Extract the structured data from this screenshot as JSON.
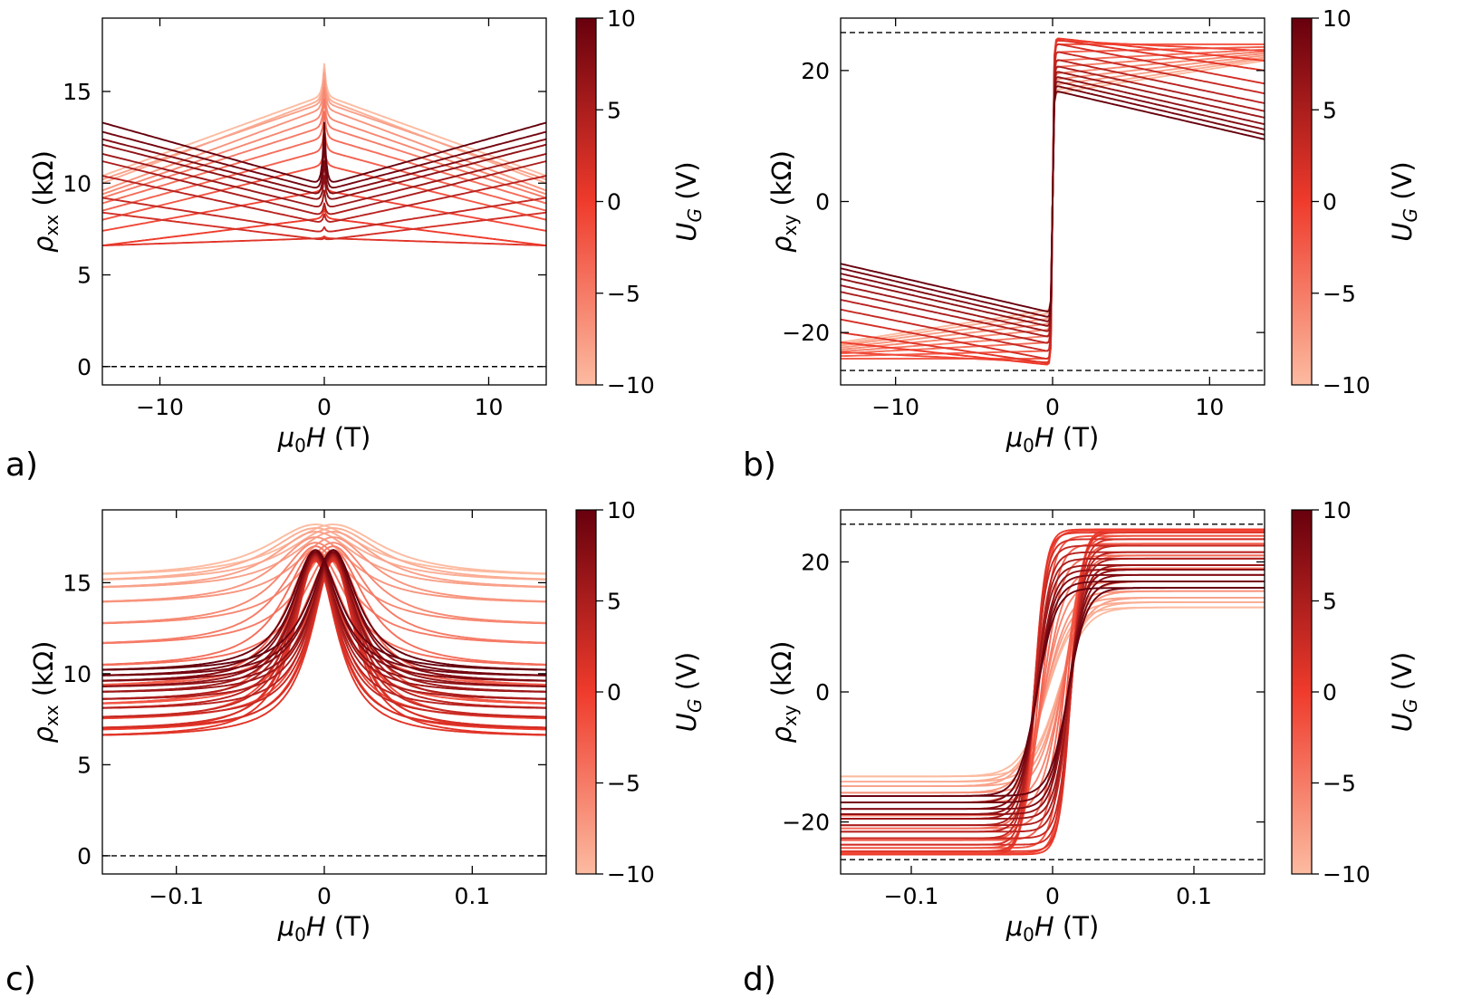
{
  "colors": {
    "cmap_low": "#fcbba1",
    "cmap_mid": "#ef3b2c",
    "cmap_high": "#67000d"
  },
  "colorbar": {
    "label_main": "U",
    "label_sub": "G",
    "label_unit": " (V)",
    "vmin": -10,
    "vmax": 10,
    "ticks": [
      10,
      5,
      0,
      -5,
      -10
    ]
  },
  "panel_letters": {
    "a": "a)",
    "b": "b)",
    "c": "c)",
    "d": "d)"
  },
  "chart_data": [
    {
      "id": "a",
      "type": "line",
      "title": "",
      "xlabel_main": "μ",
      "xlabel_sub": "0",
      "xlabel_var": "H",
      "xlabel_unit": " (T)",
      "ylabel_main": "ρ",
      "ylabel_sub": "xx",
      "ylabel_unit": " (kΩ)",
      "xlim": [
        -13.5,
        13.5
      ],
      "ylim": [
        -1,
        19
      ],
      "xticks": [
        -10,
        0,
        10
      ],
      "yticks": [
        0,
        5,
        10,
        15
      ],
      "reference_lines": [
        0
      ],
      "colorbar": "U_G (V)",
      "model": "sweep",
      "series": [
        {
          "gate_V": -10,
          "values": {
            "h0": 14.8,
            "h_pk": 16.5,
            "h_edge": 10.4
          }
        },
        {
          "gate_V": -9,
          "values": {
            "h0": 14.6,
            "h_pk": 16.2,
            "h_edge": 10.0
          }
        },
        {
          "gate_V": -8,
          "values": {
            "h0": 14.4,
            "h_pk": 16.0,
            "h_edge": 10.2
          }
        },
        {
          "gate_V": -7,
          "values": {
            "h0": 14.1,
            "h_pk": 15.6,
            "h_edge": 9.6
          }
        },
        {
          "gate_V": -6,
          "values": {
            "h0": 13.6,
            "h_pk": 15.2,
            "h_edge": 9.4
          }
        },
        {
          "gate_V": -5,
          "values": {
            "h0": 13.1,
            "h_pk": 14.6,
            "h_edge": 9.2
          }
        },
        {
          "gate_V": -4,
          "values": {
            "h0": 12.5,
            "h_pk": 13.9,
            "h_edge": 8.9
          }
        },
        {
          "gate_V": -3,
          "values": {
            "h0": 11.8,
            "h_pk": 13.0,
            "h_edge": 8.5
          }
        },
        {
          "gate_V": -2,
          "values": {
            "h0": 11.0,
            "h_pk": 12.0,
            "h_edge": 8.0
          }
        },
        {
          "gate_V": -1,
          "values": {
            "h0": 9.6,
            "h_pk": 10.2,
            "h_edge": 7.4
          }
        },
        {
          "gate_V": 0,
          "values": {
            "h0": 8.1,
            "h_pk": 8.6,
            "h_edge": 6.6
          }
        },
        {
          "gate_V": 1,
          "values": {
            "h0": 7.0,
            "h_pk": 7.1,
            "h_edge": 6.6
          }
        },
        {
          "gate_V": 2,
          "values": {
            "h0": 6.9,
            "h_pk": 7.0,
            "h_edge": 8.4
          }
        },
        {
          "gate_V": 3,
          "values": {
            "h0": 7.3,
            "h_pk": 7.6,
            "h_edge": 9.2
          }
        },
        {
          "gate_V": 4,
          "values": {
            "h0": 7.8,
            "h_pk": 8.3,
            "h_edge": 10.4
          }
        },
        {
          "gate_V": 5,
          "values": {
            "h0": 8.2,
            "h_pk": 8.9,
            "h_edge": 11.2
          }
        },
        {
          "gate_V": 6,
          "values": {
            "h0": 8.6,
            "h_pk": 9.6,
            "h_edge": 11.6
          }
        },
        {
          "gate_V": 7,
          "values": {
            "h0": 9.0,
            "h_pk": 10.4,
            "h_edge": 12.1
          }
        },
        {
          "gate_V": 8,
          "values": {
            "h0": 9.3,
            "h_pk": 11.2,
            "h_edge": 12.4
          }
        },
        {
          "gate_V": 9,
          "values": {
            "h0": 9.6,
            "h_pk": 12.2,
            "h_edge": 12.8
          }
        },
        {
          "gate_V": 10,
          "values": {
            "h0": 9.9,
            "h_pk": 13.3,
            "h_edge": 13.3
          }
        }
      ]
    },
    {
      "id": "b",
      "type": "line",
      "title": "",
      "xlabel_main": "μ",
      "xlabel_sub": "0",
      "xlabel_var": "H",
      "xlabel_unit": " (T)",
      "ylabel_main": "ρ",
      "ylabel_sub": "xy",
      "ylabel_unit": " (kΩ)",
      "xlim": [
        -13.5,
        13.5
      ],
      "ylim": [
        -28,
        28
      ],
      "xticks": [
        -10,
        0,
        10
      ],
      "yticks": [
        -20,
        0,
        20
      ],
      "reference_lines": [
        25.8,
        -25.8
      ],
      "colorbar": "U_G (V)",
      "model": "hall",
      "series": [
        {
          "gate_V": -10,
          "values": {
            "y0": 16.5,
            "y_edge": 21.5
          }
        },
        {
          "gate_V": -9,
          "values": {
            "y0": 17.0,
            "y_edge": 21.8
          }
        },
        {
          "gate_V": -8,
          "values": {
            "y0": 17.8,
            "y_edge": 22.0
          }
        },
        {
          "gate_V": -7,
          "values": {
            "y0": 18.6,
            "y_edge": 22.3
          }
        },
        {
          "gate_V": -6,
          "values": {
            "y0": 19.5,
            "y_edge": 22.6
          }
        },
        {
          "gate_V": -5,
          "values": {
            "y0": 20.5,
            "y_edge": 22.9
          }
        },
        {
          "gate_V": -4,
          "values": {
            "y0": 21.5,
            "y_edge": 23.2
          }
        },
        {
          "gate_V": -3,
          "values": {
            "y0": 22.8,
            "y_edge": 23.6
          }
        },
        {
          "gate_V": -2,
          "values": {
            "y0": 24.0,
            "y_edge": 24.0
          }
        },
        {
          "gate_V": -1,
          "values": {
            "y0": 24.6,
            "y_edge": 23.0
          }
        },
        {
          "gate_V": 0,
          "values": {
            "y0": 25.0,
            "y_edge": 21.5
          }
        },
        {
          "gate_V": 1,
          "values": {
            "y0": 24.8,
            "y_edge": 20.0
          }
        },
        {
          "gate_V": 2,
          "values": {
            "y0": 24.2,
            "y_edge": 18.0
          }
        },
        {
          "gate_V": 3,
          "values": {
            "y0": 23.0,
            "y_edge": 16.5
          }
        },
        {
          "gate_V": 4,
          "values": {
            "y0": 21.8,
            "y_edge": 15.0
          }
        },
        {
          "gate_V": 5,
          "values": {
            "y0": 20.8,
            "y_edge": 13.8
          }
        },
        {
          "gate_V": 6,
          "values": {
            "y0": 20.0,
            "y_edge": 12.8
          }
        },
        {
          "gate_V": 7,
          "values": {
            "y0": 19.2,
            "y_edge": 11.8
          }
        },
        {
          "gate_V": 8,
          "values": {
            "y0": 18.5,
            "y_edge": 11.0
          }
        },
        {
          "gate_V": 9,
          "values": {
            "y0": 17.8,
            "y_edge": 10.2
          }
        },
        {
          "gate_V": 10,
          "values": {
            "y0": 17.0,
            "y_edge": 9.5
          }
        }
      ]
    },
    {
      "id": "c",
      "type": "line",
      "title": "",
      "xlabel_main": "μ",
      "xlabel_sub": "0",
      "xlabel_var": "H",
      "xlabel_unit": " (T)",
      "ylabel_main": "ρ",
      "ylabel_sub": "xx",
      "ylabel_unit": " (kΩ)",
      "xlim": [
        -0.15,
        0.15
      ],
      "ylim": [
        -1,
        19
      ],
      "xticks": [
        -0.1,
        0.0,
        0.1
      ],
      "yticks": [
        0,
        5,
        10,
        15
      ],
      "reference_lines": [
        0
      ],
      "colorbar": "U_G (V)",
      "model": "peak",
      "series": [
        {
          "gate_V": -10,
          "values": {
            "peak": 18.2,
            "base": 15.3,
            "width": 0.04
          }
        },
        {
          "gate_V": -9,
          "values": {
            "peak": 18.0,
            "base": 15.0,
            "width": 0.038
          }
        },
        {
          "gate_V": -8,
          "values": {
            "peak": 17.8,
            "base": 14.6,
            "width": 0.035
          }
        },
        {
          "gate_V": -7,
          "values": {
            "peak": 17.5,
            "base": 13.8,
            "width": 0.032
          }
        },
        {
          "gate_V": -6,
          "values": {
            "peak": 17.2,
            "base": 12.6,
            "width": 0.03
          }
        },
        {
          "gate_V": -5,
          "values": {
            "peak": 17.0,
            "base": 11.5,
            "width": 0.028
          }
        },
        {
          "gate_V": -4,
          "values": {
            "peak": 16.8,
            "base": 10.3,
            "width": 0.026
          }
        },
        {
          "gate_V": -3,
          "values": {
            "peak": 16.6,
            "base": 9.2,
            "width": 0.024
          }
        },
        {
          "gate_V": -2,
          "values": {
            "peak": 16.4,
            "base": 8.2,
            "width": 0.022
          }
        },
        {
          "gate_V": -1,
          "values": {
            "peak": 16.3,
            "base": 7.4,
            "width": 0.02
          }
        },
        {
          "gate_V": 0,
          "values": {
            "peak": 16.2,
            "base": 6.8,
            "width": 0.019
          }
        },
        {
          "gate_V": 1,
          "values": {
            "peak": 16.2,
            "base": 6.5,
            "width": 0.018
          }
        },
        {
          "gate_V": 2,
          "values": {
            "peak": 16.3,
            "base": 6.9,
            "width": 0.018
          }
        },
        {
          "gate_V": 3,
          "values": {
            "peak": 16.4,
            "base": 7.5,
            "width": 0.018
          }
        },
        {
          "gate_V": 4,
          "values": {
            "peak": 16.5,
            "base": 8.0,
            "width": 0.018
          }
        },
        {
          "gate_V": 5,
          "values": {
            "peak": 16.5,
            "base": 8.5,
            "width": 0.018
          }
        },
        {
          "gate_V": 6,
          "values": {
            "peak": 16.6,
            "base": 8.9,
            "width": 0.018
          }
        },
        {
          "gate_V": 7,
          "values": {
            "peak": 16.6,
            "base": 9.2,
            "width": 0.018
          }
        },
        {
          "gate_V": 8,
          "values": {
            "peak": 16.7,
            "base": 9.5,
            "width": 0.019
          }
        },
        {
          "gate_V": 9,
          "values": {
            "peak": 16.7,
            "base": 9.8,
            "width": 0.019
          }
        },
        {
          "gate_V": 10,
          "values": {
            "peak": 16.8,
            "base": 10.1,
            "width": 0.02
          }
        }
      ]
    },
    {
      "id": "d",
      "type": "line",
      "title": "",
      "xlabel_main": "μ",
      "xlabel_sub": "0",
      "xlabel_var": "H",
      "xlabel_unit": " (T)",
      "ylabel_main": "ρ",
      "ylabel_sub": "xy",
      "ylabel_unit": " (kΩ)",
      "xlim": [
        -0.15,
        0.15
      ],
      "ylim": [
        -28,
        28
      ],
      "xticks": [
        -0.1,
        0.0,
        0.1
      ],
      "yticks": [
        -20,
        0,
        20
      ],
      "reference_lines": [
        25.8,
        -25.8
      ],
      "colorbar": "U_G (V)",
      "model": "loop",
      "series": [
        {
          "gate_V": -10,
          "values": {
            "sat": 13.0,
            "width": 0.035,
            "coercive": 0.004
          }
        },
        {
          "gate_V": -9,
          "values": {
            "sat": 13.8,
            "width": 0.034,
            "coercive": 0.004
          }
        },
        {
          "gate_V": -8,
          "values": {
            "sat": 14.5,
            "width": 0.033,
            "coercive": 0.005
          }
        },
        {
          "gate_V": -7,
          "values": {
            "sat": 15.5,
            "width": 0.031,
            "coercive": 0.005
          }
        },
        {
          "gate_V": -6,
          "values": {
            "sat": 17.0,
            "width": 0.029,
            "coercive": 0.006
          }
        },
        {
          "gate_V": -5,
          "values": {
            "sat": 19.0,
            "width": 0.027,
            "coercive": 0.006
          }
        },
        {
          "gate_V": -4,
          "values": {
            "sat": 21.0,
            "width": 0.024,
            "coercive": 0.007
          }
        },
        {
          "gate_V": -3,
          "values": {
            "sat": 22.8,
            "width": 0.021,
            "coercive": 0.008
          }
        },
        {
          "gate_V": -2,
          "values": {
            "sat": 24.0,
            "width": 0.018,
            "coercive": 0.01
          }
        },
        {
          "gate_V": -1,
          "values": {
            "sat": 24.8,
            "width": 0.016,
            "coercive": 0.012
          }
        },
        {
          "gate_V": 0,
          "values": {
            "sat": 25.0,
            "width": 0.015,
            "coercive": 0.013
          }
        },
        {
          "gate_V": 1,
          "values": {
            "sat": 24.5,
            "width": 0.015,
            "coercive": 0.013
          }
        },
        {
          "gate_V": 2,
          "values": {
            "sat": 23.5,
            "width": 0.016,
            "coercive": 0.013
          }
        },
        {
          "gate_V": 3,
          "values": {
            "sat": 22.5,
            "width": 0.017,
            "coercive": 0.013
          }
        },
        {
          "gate_V": 4,
          "values": {
            "sat": 21.5,
            "width": 0.018,
            "coercive": 0.012
          }
        },
        {
          "gate_V": 5,
          "values": {
            "sat": 20.5,
            "width": 0.019,
            "coercive": 0.012
          }
        },
        {
          "gate_V": 6,
          "values": {
            "sat": 19.5,
            "width": 0.02,
            "coercive": 0.012
          }
        },
        {
          "gate_V": 7,
          "values": {
            "sat": 18.8,
            "width": 0.021,
            "coercive": 0.011
          }
        },
        {
          "gate_V": 8,
          "values": {
            "sat": 18.0,
            "width": 0.022,
            "coercive": 0.011
          }
        },
        {
          "gate_V": 9,
          "values": {
            "sat": 17.0,
            "width": 0.023,
            "coercive": 0.011
          }
        },
        {
          "gate_V": 10,
          "values": {
            "sat": 16.0,
            "width": 0.024,
            "coercive": 0.011
          }
        }
      ]
    }
  ]
}
